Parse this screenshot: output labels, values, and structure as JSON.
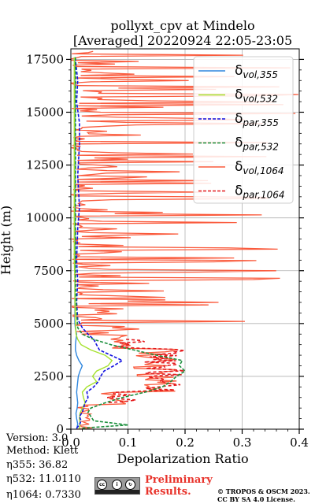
{
  "chart_data": {
    "type": "line",
    "title": "pollyxt_cpv at Mindelo",
    "subtitle": "[Averaged] 20220924 22:05-23:05",
    "xlabel": "Depolarization Ratio",
    "ylabel": "Height (m)",
    "xlim": [
      0,
      0.4
    ],
    "ylim": [
      0,
      18000
    ],
    "xticks": [
      "0.0",
      "0.1",
      "0.2",
      "0.3",
      "0.4"
    ],
    "yticks": [
      "0",
      "2500",
      "5000",
      "7500",
      "10000",
      "12500",
      "15000",
      "17500"
    ],
    "grid": true,
    "legend_position": "top-right",
    "series": [
      {
        "name": "δvol,355",
        "color": "#2e86de",
        "style": "solid",
        "points": [
          [
            0.01,
            0
          ],
          [
            0.012,
            250
          ],
          [
            0.01,
            500
          ],
          [
            0.009,
            750
          ],
          [
            0.011,
            1000
          ],
          [
            0.012,
            1250
          ],
          [
            0.011,
            1500
          ],
          [
            0.01,
            1750
          ],
          [
            0.011,
            2000
          ],
          [
            0.012,
            2250
          ],
          [
            0.013,
            2500
          ],
          [
            0.016,
            2750
          ],
          [
            0.02,
            3000
          ],
          [
            0.014,
            3250
          ],
          [
            0.01,
            3500
          ],
          [
            0.008,
            3750
          ],
          [
            0.008,
            4000
          ],
          [
            0.009,
            4250
          ],
          [
            0.01,
            4500
          ],
          [
            0.008,
            4750
          ],
          [
            0.007,
            5000
          ],
          [
            0.007,
            6000
          ],
          [
            0.007,
            7000
          ],
          [
            0.007,
            8000
          ],
          [
            0.007,
            9000
          ],
          [
            0.007,
            10000
          ],
          [
            0.007,
            11000
          ],
          [
            0.007,
            12000
          ],
          [
            0.007,
            13000
          ],
          [
            0.007,
            14000
          ],
          [
            0.007,
            15000
          ],
          [
            0.007,
            16000
          ],
          [
            0.007,
            17000
          ],
          [
            0.007,
            17600
          ]
        ]
      },
      {
        "name": "δvol,532",
        "color": "#a6e22e",
        "style": "solid",
        "points": [
          [
            0.015,
            0
          ],
          [
            0.016,
            250
          ],
          [
            0.015,
            500
          ],
          [
            0.016,
            750
          ],
          [
            0.02,
            1000
          ],
          [
            0.025,
            1250
          ],
          [
            0.022,
            1500
          ],
          [
            0.02,
            1750
          ],
          [
            0.028,
            2000
          ],
          [
            0.045,
            2250
          ],
          [
            0.038,
            2500
          ],
          [
            0.045,
            2750
          ],
          [
            0.065,
            3000
          ],
          [
            0.072,
            3250
          ],
          [
            0.06,
            3500
          ],
          [
            0.035,
            3750
          ],
          [
            0.018,
            4000
          ],
          [
            0.012,
            4250
          ],
          [
            0.009,
            4500
          ],
          [
            0.008,
            5000
          ],
          [
            0.007,
            6000
          ],
          [
            0.007,
            7000
          ],
          [
            0.006,
            8000
          ],
          [
            0.006,
            9000
          ],
          [
            0.006,
            10000
          ],
          [
            0.006,
            11000
          ],
          [
            0.006,
            12000
          ],
          [
            0.006,
            13000
          ],
          [
            0.006,
            14000
          ],
          [
            0.006,
            15000
          ],
          [
            0.006,
            16000
          ],
          [
            0.006,
            17000
          ],
          [
            0.006,
            17600
          ]
        ]
      },
      {
        "name": "δpar,355",
        "color": "#1010e0",
        "style": "dashed",
        "points": [
          [
            0.01,
            50
          ],
          [
            0.015,
            200
          ],
          [
            0.018,
            400
          ],
          [
            0.015,
            600
          ],
          [
            0.02,
            800
          ],
          [
            0.022,
            1000
          ],
          [
            0.025,
            1250
          ],
          [
            0.03,
            1500
          ],
          [
            0.028,
            1750
          ],
          [
            0.04,
            2000
          ],
          [
            0.048,
            2250
          ],
          [
            0.052,
            2500
          ],
          [
            0.058,
            2750
          ],
          [
            0.075,
            3000
          ],
          [
            0.09,
            3250
          ],
          [
            0.07,
            3500
          ],
          [
            0.05,
            3750
          ],
          [
            0.045,
            4000
          ],
          [
            0.04,
            4250
          ],
          [
            0.03,
            4500
          ],
          [
            0.02,
            4800
          ],
          [
            0.012,
            5200
          ],
          [
            0.01,
            6000
          ],
          [
            0.012,
            7000
          ],
          [
            0.01,
            8000
          ],
          [
            0.012,
            9500
          ],
          [
            0.015,
            10500
          ],
          [
            0.012,
            12000
          ],
          [
            0.015,
            13500
          ],
          [
            0.015,
            14500
          ],
          [
            0.01,
            15500
          ],
          [
            0.012,
            16500
          ],
          [
            0.008,
            17500
          ]
        ]
      },
      {
        "name": "δpar,532",
        "color": "#1a8f3c",
        "style": "dashed",
        "points": [
          [
            0.02,
            50
          ],
          [
            0.1,
            200
          ],
          [
            0.04,
            400
          ],
          [
            0.035,
            600
          ],
          [
            0.03,
            800
          ],
          [
            0.035,
            1000
          ],
          [
            0.06,
            1250
          ],
          [
            0.09,
            1500
          ],
          [
            0.13,
            1750
          ],
          [
            0.16,
            2000
          ],
          [
            0.175,
            2250
          ],
          [
            0.185,
            2500
          ],
          [
            0.2,
            2750
          ],
          [
            0.19,
            3000
          ],
          [
            0.195,
            3250
          ],
          [
            0.15,
            3500
          ],
          [
            0.11,
            3750
          ],
          [
            0.07,
            4000
          ],
          [
            0.04,
            4250
          ],
          [
            0.02,
            4500
          ],
          [
            0.012,
            4800
          ],
          [
            0.01,
            5500
          ],
          [
            0.008,
            7000
          ],
          [
            0.008,
            9000
          ],
          [
            0.008,
            11000
          ],
          [
            0.008,
            13000
          ],
          [
            0.008,
            15000
          ],
          [
            0.008,
            17000
          ],
          [
            0.008,
            17600
          ]
        ]
      },
      {
        "name": "δvol,1064",
        "color": "#fa5a3c",
        "style": "solid",
        "points": []
      },
      {
        "name": "δpar,1064",
        "color": "#e41a1c",
        "style": "dashed",
        "points": []
      }
    ]
  },
  "meta": {
    "version": "Version: 3.0",
    "method": "Method: Klett",
    "eta355": "η355:  36.82",
    "eta532": "η532: 11.0110",
    "eta1064": "η1064: 0.7330",
    "preliminary_line1": "Preliminary",
    "preliminary_line2": "Results.",
    "copyright_line1": "© TROPOS & OSCM 2023.",
    "copyright_line2": "CC BY SA 4.0 License."
  }
}
